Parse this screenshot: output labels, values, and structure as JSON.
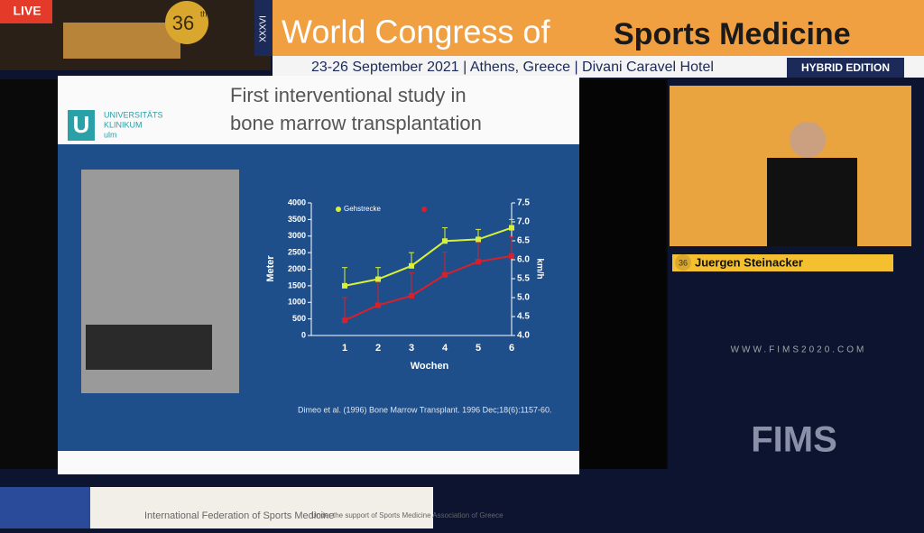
{
  "header": {
    "live": "LIVE",
    "edition_number": "36",
    "edition_suffix": "th",
    "roman": "XXXVI",
    "title_light": "World Congress of",
    "title_bold": "Sports Medicine",
    "details": "23-26 September 2021  |  Athens, Greece  |  Divani Caravel Hotel",
    "hybrid": "HYBRID EDITION"
  },
  "slide": {
    "title_line1": "First interventional study in",
    "title_line2": "bone marrow transplantation",
    "logo_line1": "UNIVERSITÄTS",
    "logo_line2": "KLINIKUM",
    "logo_line3": "ulm",
    "logo_letter": "U",
    "citation": "Dimeo et al. (1996) Bone Marrow Transplant. 1996 Dec;18(6):1157-60."
  },
  "chart_data": {
    "type": "line",
    "ylabel": "Meter",
    "y2label": "km/h",
    "xlabel": "Wochen",
    "categories": [
      "1",
      "2",
      "3",
      "4",
      "5",
      "6"
    ],
    "ylim": [
      0,
      4000
    ],
    "yticks": [
      0,
      500,
      1000,
      1500,
      2000,
      2500,
      3000,
      3500,
      4000
    ],
    "y2lim": [
      4,
      7.5
    ],
    "y2ticks": [
      {
        "value": 4,
        "label": "4.0"
      },
      4.5,
      {
        "value": 5,
        "label": "5.0"
      },
      5.5,
      {
        "value": 6,
        "label": "6.0"
      },
      6.5,
      {
        "value": 7,
        "label": "7.0"
      },
      7.5
    ],
    "series": [
      {
        "name": "Gehstrecke",
        "color": "#d8f03a",
        "values": [
          1500,
          1700,
          2100,
          2850,
          2900,
          3250
        ],
        "errors": [
          550,
          350,
          400,
          400,
          300,
          250
        ]
      },
      {
        "color": "#d8202a",
        "axis": "y2",
        "values": [
          4.4,
          4.8,
          5.05,
          5.6,
          5.95,
          6.1
        ],
        "errors": [
          0.6,
          0.6,
          0.6,
          0.6,
          0.5,
          0.5
        ]
      }
    ]
  },
  "speaker": {
    "badge": "36",
    "name": "Juergen Steinacker",
    "website": "WWW.FIMS2020.COM",
    "logo": "FIMS"
  },
  "footer": {
    "federation": "International Federation of Sports Medicine",
    "support": "Under the support of Sports Medicine Association of Greece"
  }
}
